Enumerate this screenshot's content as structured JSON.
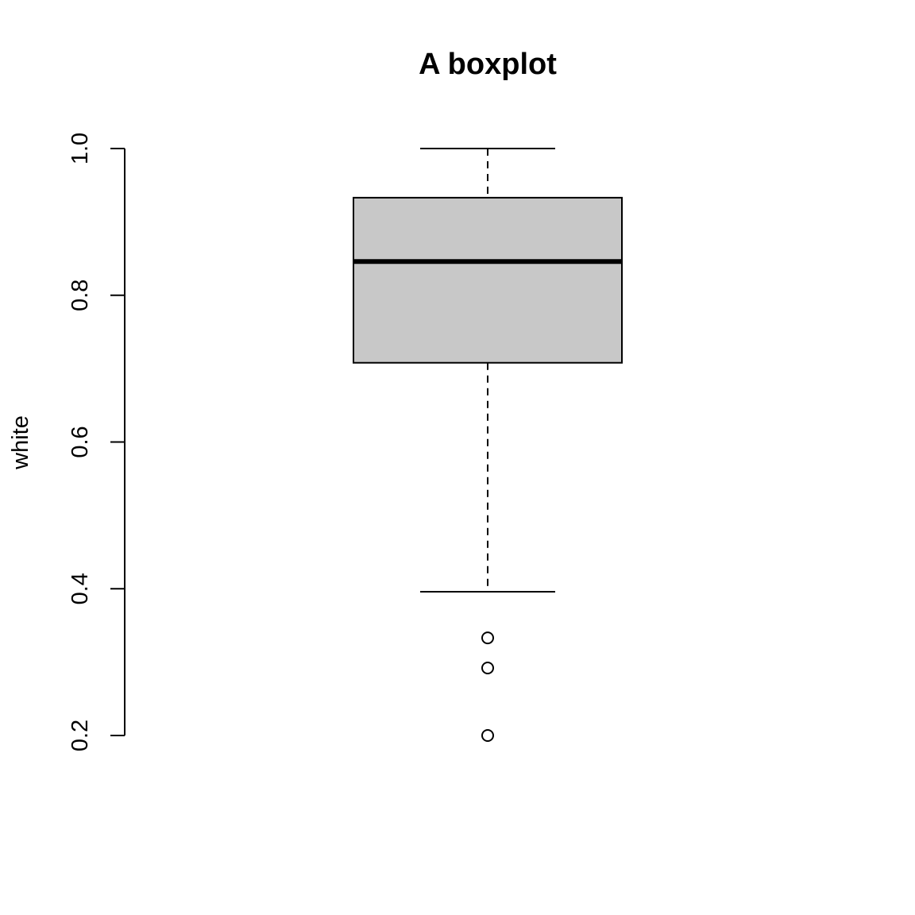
{
  "chart_data": {
    "type": "boxplot",
    "title": "A boxplot",
    "xlabel": "",
    "ylabel": "white",
    "ylim": [
      0.2,
      1.0
    ],
    "yticks": [
      0.2,
      0.4,
      0.6,
      0.8,
      1.0
    ],
    "ytick_labels": [
      "0.2",
      "0.4",
      "0.6",
      "0.8",
      "1.0"
    ],
    "grid": false,
    "box": {
      "whisker_low": 0.396,
      "q1": 0.708,
      "median": 0.846,
      "q3": 0.933,
      "whisker_high": 1.0,
      "outliers": [
        0.333,
        0.292,
        0.2
      ]
    },
    "colors": {
      "box_fill": "#c8c8c8",
      "line": "#000000"
    }
  }
}
